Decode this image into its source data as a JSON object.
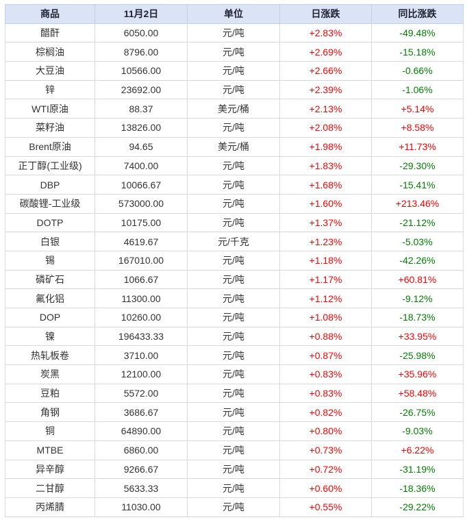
{
  "colors": {
    "up": "#fe0000",
    "down": "#008000",
    "header_bg": "#dbe4f4",
    "header_text": "#1d2130",
    "body_text": "#333333",
    "grid": "#d9d9d9",
    "outer_border": "#c3d0e4"
  },
  "chart_data": {
    "type": "table",
    "columns": [
      "商品",
      "11月2日",
      "单位",
      "日涨跌",
      "同比涨跌"
    ],
    "rows": [
      {
        "name": "醋酐",
        "price": "6050.00",
        "unit": "元/吨",
        "daily_change": "+2.83%",
        "yoy_change": "-49.48%"
      },
      {
        "name": "棕榈油",
        "price": "8796.00",
        "unit": "元/吨",
        "daily_change": "+2.69%",
        "yoy_change": "-15.18%"
      },
      {
        "name": "大豆油",
        "price": "10566.00",
        "unit": "元/吨",
        "daily_change": "+2.66%",
        "yoy_change": "-0.66%"
      },
      {
        "name": "锌",
        "price": "23692.00",
        "unit": "元/吨",
        "daily_change": "+2.39%",
        "yoy_change": "-1.06%"
      },
      {
        "name": "WTI原油",
        "price": "88.37",
        "unit": "美元/桶",
        "daily_change": "+2.13%",
        "yoy_change": "+5.14%"
      },
      {
        "name": "菜籽油",
        "price": "13826.00",
        "unit": "元/吨",
        "daily_change": "+2.08%",
        "yoy_change": "+8.58%"
      },
      {
        "name": "Brent原油",
        "price": "94.65",
        "unit": "美元/桶",
        "daily_change": "+1.98%",
        "yoy_change": "+11.73%"
      },
      {
        "name": "正丁醇(工业级)",
        "price": "7400.00",
        "unit": "元/吨",
        "daily_change": "+1.83%",
        "yoy_change": "-29.30%"
      },
      {
        "name": "DBP",
        "price": "10066.67",
        "unit": "元/吨",
        "daily_change": "+1.68%",
        "yoy_change": "-15.41%"
      },
      {
        "name": "碳酸锂-工业级",
        "price": "573000.00",
        "unit": "元/吨",
        "daily_change": "+1.60%",
        "yoy_change": "+213.46%"
      },
      {
        "name": "DOTP",
        "price": "10175.00",
        "unit": "元/吨",
        "daily_change": "+1.37%",
        "yoy_change": "-21.12%"
      },
      {
        "name": "白银",
        "price": "4619.67",
        "unit": "元/千克",
        "daily_change": "+1.23%",
        "yoy_change": "-5.03%"
      },
      {
        "name": "锡",
        "price": "167010.00",
        "unit": "元/吨",
        "daily_change": "+1.18%",
        "yoy_change": "-42.26%"
      },
      {
        "name": "磷矿石",
        "price": "1066.67",
        "unit": "元/吨",
        "daily_change": "+1.17%",
        "yoy_change": "+60.81%"
      },
      {
        "name": "氟化铝",
        "price": "11300.00",
        "unit": "元/吨",
        "daily_change": "+1.12%",
        "yoy_change": "-9.12%"
      },
      {
        "name": "DOP",
        "price": "10260.00",
        "unit": "元/吨",
        "daily_change": "+1.08%",
        "yoy_change": "-18.73%"
      },
      {
        "name": "镍",
        "price": "196433.33",
        "unit": "元/吨",
        "daily_change": "+0.88%",
        "yoy_change": "+33.95%"
      },
      {
        "name": "热轧板卷",
        "price": "3710.00",
        "unit": "元/吨",
        "daily_change": "+0.87%",
        "yoy_change": "-25.98%"
      },
      {
        "name": "炭黑",
        "price": "12100.00",
        "unit": "元/吨",
        "daily_change": "+0.83%",
        "yoy_change": "+35.96%"
      },
      {
        "name": "豆粕",
        "price": "5572.00",
        "unit": "元/吨",
        "daily_change": "+0.83%",
        "yoy_change": "+58.48%"
      },
      {
        "name": "角钢",
        "price": "3686.67",
        "unit": "元/吨",
        "daily_change": "+0.82%",
        "yoy_change": "-26.75%"
      },
      {
        "name": "铜",
        "price": "64890.00",
        "unit": "元/吨",
        "daily_change": "+0.80%",
        "yoy_change": "-9.03%"
      },
      {
        "name": "MTBE",
        "price": "6860.00",
        "unit": "元/吨",
        "daily_change": "+0.73%",
        "yoy_change": "+6.22%"
      },
      {
        "name": "异辛醇",
        "price": "9266.67",
        "unit": "元/吨",
        "daily_change": "+0.72%",
        "yoy_change": "-31.19%"
      },
      {
        "name": "二甘醇",
        "price": "5633.33",
        "unit": "元/吨",
        "daily_change": "+0.60%",
        "yoy_change": "-18.36%"
      },
      {
        "name": "丙烯腈",
        "price": "11030.00",
        "unit": "元/吨",
        "daily_change": "+0.55%",
        "yoy_change": "-29.22%"
      }
    ]
  }
}
